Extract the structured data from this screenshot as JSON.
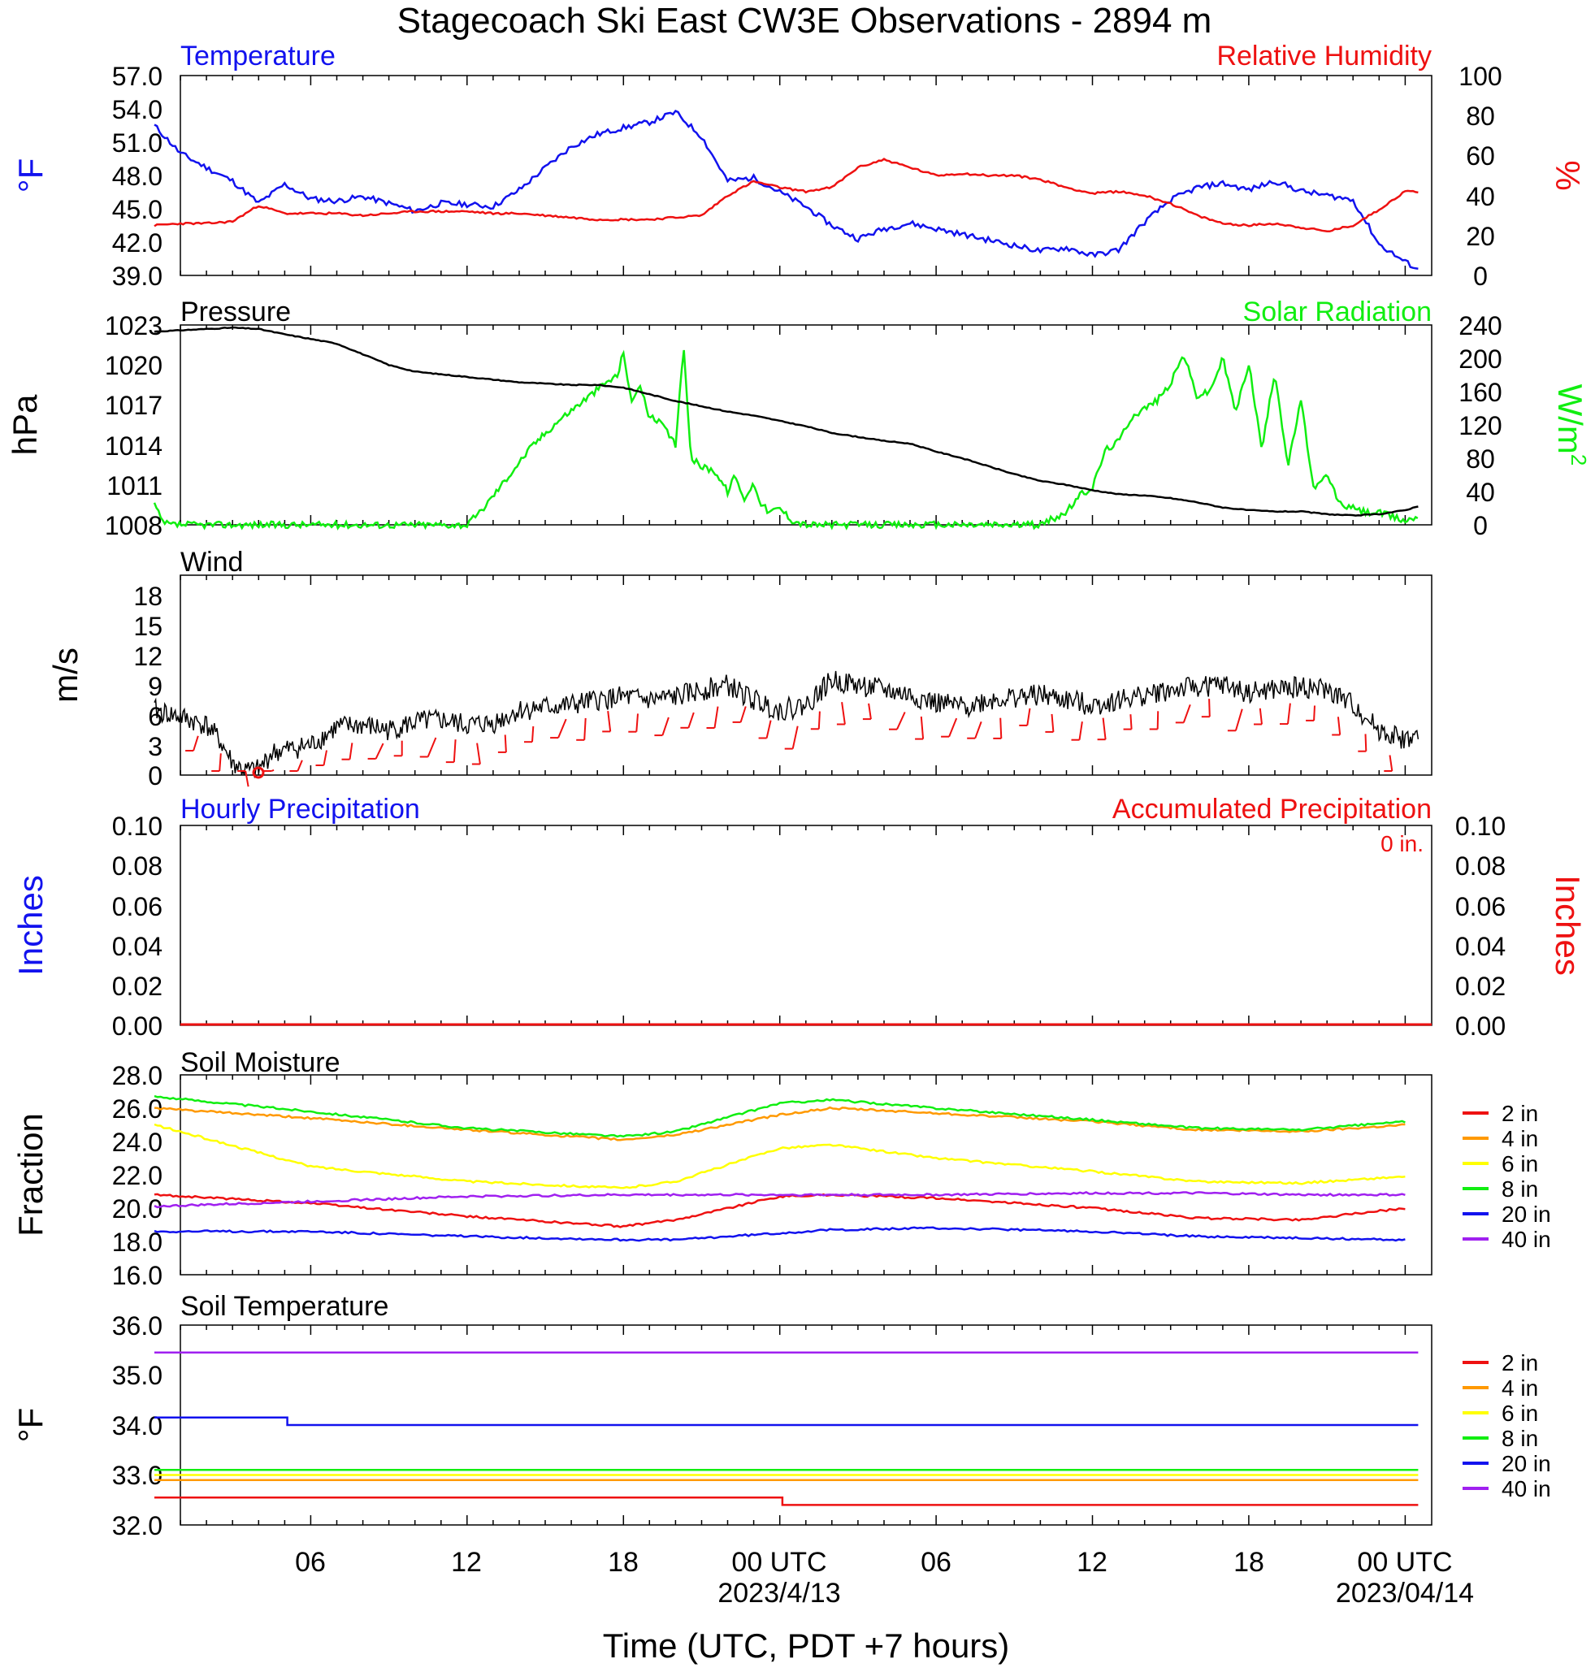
{
  "title": "Stagecoach Ski East CW3E Observations - 2894 m",
  "xaxis": {
    "ticks": [
      "06",
      "12",
      "18",
      "00 UTC",
      "06",
      "12",
      "18",
      "00 UTC"
    ],
    "dates": [
      "2023/4/13",
      "2023/04/14"
    ],
    "title": "Time (UTC, PDT +7 hours)"
  },
  "colors": {
    "blue": "#1212ee",
    "red": "#ee1111",
    "green": "#11ee11",
    "black": "#000000",
    "orange": "#ff9900",
    "yellow": "#ffff00",
    "purple": "#a020f0"
  },
  "panels": {
    "temp_rh": {
      "left_title": "Temperature",
      "right_title": "Relative Humidity",
      "left_unit": "°F",
      "right_unit": "%",
      "left_ticks": [
        "57.0",
        "54.0",
        "51.0",
        "48.0",
        "45.0",
        "42.0",
        "39.0"
      ],
      "right_ticks": [
        "100",
        "80",
        "60",
        "40",
        "20",
        "0"
      ]
    },
    "pressure_solar": {
      "left_title": "Pressure",
      "right_title": "Solar Radiation",
      "left_unit": "hPa",
      "right_unit": "W/m",
      "right_unit_sup": "2",
      "left_ticks": [
        "1023",
        "1020",
        "1017",
        "1014",
        "1011",
        "1008"
      ],
      "right_ticks": [
        "240",
        "200",
        "160",
        "120",
        "80",
        "40",
        "0"
      ]
    },
    "wind": {
      "left_title": "Wind",
      "left_unit": "m/s",
      "left_ticks": [
        "18",
        "15",
        "12",
        "9",
        "6",
        "3",
        "0"
      ]
    },
    "precip": {
      "left_title": "Hourly Precipitation",
      "right_title": "Accumulated Precipitation",
      "accum_label": "0 in.",
      "left_unit": "Inches",
      "right_unit": "Inches",
      "left_ticks": [
        "0.10",
        "0.08",
        "0.06",
        "0.04",
        "0.02",
        "0.00"
      ],
      "right_ticks": [
        "0.10",
        "0.08",
        "0.06",
        "0.04",
        "0.02",
        "0.00"
      ]
    },
    "soil_moisture": {
      "left_title": "Soil Moisture",
      "left_unit": "Fraction",
      "left_ticks": [
        "28.0",
        "26.0",
        "24.0",
        "22.0",
        "20.0",
        "18.0",
        "16.0"
      ],
      "legend": [
        "2 in",
        "4 in",
        "6 in",
        "8 in",
        "20 in",
        "40 in"
      ]
    },
    "soil_temp": {
      "left_title": "Soil Temperature",
      "left_unit": "°F",
      "left_ticks": [
        "36.0",
        "35.0",
        "34.0",
        "33.0",
        "32.0"
      ],
      "legend": [
        "2 in",
        "4 in",
        "6 in",
        "8 in",
        "20 in",
        "40 in"
      ]
    }
  },
  "chart_data": [
    {
      "type": "line",
      "title": "Temperature / Relative Humidity",
      "x_unit": "hours since 2023-04-12 00 UTC",
      "ylim_left": [
        39,
        57
      ],
      "ylim_right": [
        0,
        100
      ],
      "series": [
        {
          "name": "Temperature",
          "axis": "left",
          "x": [
            0,
            1,
            2,
            3,
            4,
            5,
            6,
            7,
            8,
            9,
            10,
            11,
            12,
            13,
            14,
            15,
            16,
            17,
            18,
            19,
            20,
            21,
            22,
            23,
            24,
            25,
            26,
            27,
            28,
            29,
            30,
            31,
            32,
            33,
            34,
            35,
            36,
            37,
            38,
            39,
            40,
            41,
            42,
            43,
            44,
            45,
            46,
            47,
            48,
            48.5
          ],
          "values": [
            52.5,
            50,
            48.7,
            47.5,
            45.5,
            47.2,
            45.9,
            45.7,
            46.1,
            45.5,
            44.8,
            45.5,
            45.4,
            45.2,
            46.7,
            48.7,
            50.6,
            51.7,
            52.3,
            52.8,
            53.7,
            51.5,
            47.5,
            47.8,
            46.5,
            45.2,
            43.5,
            42.3,
            43.2,
            43.7,
            43.2,
            42.7,
            42.2,
            41.7,
            41.2,
            41.5,
            40.8,
            41.3,
            43.8,
            45.8,
            46.9,
            47.3,
            46.7,
            47.5,
            46.6,
            46.2,
            45.8,
            41.8,
            40.2,
            39.6
          ]
        },
        {
          "name": "Relative Humidity",
          "axis": "right",
          "x": [
            0,
            1,
            2,
            3,
            4,
            5,
            6,
            7,
            8,
            9,
            10,
            11,
            12,
            13,
            14,
            15,
            16,
            17,
            18,
            19,
            20,
            21,
            22,
            23,
            24,
            25,
            26,
            27,
            28,
            29,
            30,
            31,
            32,
            33,
            34,
            35,
            36,
            37,
            38,
            39,
            40,
            41,
            42,
            43,
            44,
            45,
            46,
            47,
            48,
            48.5
          ],
          "values": [
            25,
            26,
            26,
            27,
            35,
            31,
            31,
            31,
            30,
            31,
            32,
            32,
            32,
            31,
            31,
            30,
            29,
            28,
            28,
            28,
            29,
            30,
            40,
            47,
            44,
            42,
            44,
            54,
            58,
            54,
            50,
            51,
            50,
            50,
            48,
            44,
            41,
            42,
            40,
            36,
            30,
            26,
            25,
            26,
            24,
            22,
            25,
            33,
            42,
            42
          ]
        }
      ]
    },
    {
      "type": "line",
      "title": "Pressure / Solar Radiation",
      "x_unit": "hours since 2023-04-12 00 UTC",
      "ylim_left": [
        1008,
        1023
      ],
      "ylim_right": [
        0,
        240
      ],
      "series": [
        {
          "name": "Pressure",
          "axis": "left",
          "x": [
            0,
            2,
            3,
            4,
            5,
            7,
            8,
            9,
            10,
            11,
            12,
            13,
            14,
            15,
            16,
            17,
            18,
            19,
            20,
            21,
            22,
            23,
            24,
            25,
            26,
            27,
            28,
            29,
            30,
            31,
            32,
            33,
            34,
            35,
            36,
            37,
            38,
            39,
            40,
            41,
            42,
            43,
            44,
            45,
            46,
            47,
            48,
            48.5
          ],
          "values": [
            1022.5,
            1022.7,
            1022.8,
            1022.7,
            1022.3,
            1021.6,
            1020.8,
            1020.0,
            1019.5,
            1019.3,
            1019.1,
            1018.9,
            1018.7,
            1018.6,
            1018.5,
            1018.5,
            1018.3,
            1017.8,
            1017.3,
            1016.9,
            1016.5,
            1016.2,
            1015.8,
            1015.4,
            1014.9,
            1014.6,
            1014.3,
            1014.1,
            1013.5,
            1013.0,
            1012.4,
            1011.8,
            1011.3,
            1011.0,
            1010.6,
            1010.3,
            1010.2,
            1010.0,
            1009.7,
            1009.3,
            1009.1,
            1009.0,
            1009.0,
            1008.8,
            1008.7,
            1008.8,
            1009.1,
            1009.4
          ]
        },
        {
          "name": "Solar Radiation",
          "axis": "right",
          "x": [
            0,
            0.3,
            0.6,
            12,
            12.5,
            13.5,
            14.5,
            15.5,
            16.5,
            17.3,
            17.8,
            18,
            18.3,
            18.6,
            19,
            19.5,
            20,
            20.3,
            20.6,
            21,
            21.5,
            22,
            22.3,
            22.6,
            23,
            23.3,
            23.6,
            24,
            24.5,
            25,
            30,
            34,
            35,
            35.5,
            36,
            36.5,
            37,
            37.5,
            38,
            38.5,
            39,
            39.5,
            40,
            40.5,
            41,
            41.5,
            42,
            42.5,
            43,
            43.5,
            44,
            44.5,
            45,
            45.5,
            46,
            46.5,
            47,
            48,
            48.5
          ],
          "values": [
            25,
            3,
            0,
            0,
            15,
            55,
            95,
            125,
            150,
            170,
            180,
            210,
            145,
            170,
            130,
            120,
            95,
            215,
            80,
            70,
            65,
            40,
            60,
            30,
            50,
            25,
            15,
            20,
            5,
            0,
            0,
            0,
            15,
            35,
            45,
            90,
            100,
            130,
            140,
            150,
            170,
            205,
            155,
            160,
            200,
            135,
            195,
            90,
            185,
            70,
            150,
            40,
            60,
            25,
            20,
            15,
            15,
            5,
            10
          ]
        }
      ]
    },
    {
      "type": "line",
      "title": "Wind",
      "x_unit": "hours since 2023-04-12 00 UTC",
      "ylim": [
        0,
        20
      ],
      "series": [
        {
          "name": "Wind speed",
          "x": [
            0,
            1,
            2,
            2.5,
            3,
            3.5,
            4,
            4.5,
            5,
            6,
            7,
            8,
            9,
            10,
            11,
            12,
            13,
            14,
            15,
            16,
            17,
            18,
            19,
            20,
            21,
            22,
            23,
            24,
            25,
            26,
            27,
            28,
            29,
            30,
            31,
            32,
            33,
            34,
            35,
            36,
            37,
            38,
            39,
            40,
            41,
            42,
            43,
            44,
            45,
            46,
            47,
            48,
            48.5
          ],
          "values": [
            6.5,
            5.8,
            5.0,
            3.5,
            1.2,
            0.4,
            0.5,
            2.2,
            2.5,
            3.0,
            4.8,
            5.0,
            4.5,
            5.3,
            5.5,
            5.0,
            5.2,
            6.5,
            6.8,
            7.0,
            7.5,
            7.8,
            7.5,
            7.8,
            8.5,
            9.0,
            7.5,
            6.5,
            7.0,
            9.5,
            9.0,
            8.5,
            8.0,
            7.2,
            6.8,
            7.5,
            7.8,
            8.0,
            7.5,
            7.0,
            7.5,
            8.0,
            8.5,
            8.8,
            9.0,
            8.2,
            8.5,
            8.8,
            8.5,
            7.0,
            4.5,
            3.5,
            3.8
          ]
        }
      ]
    },
    {
      "type": "line",
      "title": "Precipitation",
      "x_unit": "hours since 2023-04-12 00 UTC",
      "ylim": [
        0,
        0.1
      ],
      "series": [
        {
          "name": "Hourly Precipitation",
          "x": [
            0,
            48.5
          ],
          "values": [
            0,
            0
          ]
        },
        {
          "name": "Accumulated Precipitation",
          "x": [
            0,
            48.5
          ],
          "values": [
            0,
            0
          ]
        }
      ]
    },
    {
      "type": "line",
      "title": "Soil Moisture",
      "x_unit": "hours since 2023-04-12 00 UTC",
      "ylim": [
        16,
        28
      ],
      "series": [
        {
          "name": "2 in",
          "x": [
            0,
            6,
            12,
            18,
            20,
            24,
            26,
            30,
            36,
            40,
            44,
            48
          ],
          "values": [
            20.8,
            20.3,
            19.5,
            18.9,
            19.3,
            20.7,
            20.8,
            20.6,
            20.0,
            19.4,
            19.3,
            20.0
          ]
        },
        {
          "name": "4 in",
          "x": [
            0,
            6,
            12,
            18,
            20,
            24,
            26,
            30,
            36,
            40,
            44,
            48
          ],
          "values": [
            26.0,
            25.4,
            24.7,
            24.1,
            24.4,
            25.6,
            26.0,
            25.7,
            25.2,
            24.7,
            24.6,
            25.0
          ]
        },
        {
          "name": "6 in",
          "x": [
            0,
            6,
            12,
            18,
            20,
            24,
            26,
            30,
            36,
            40,
            44,
            48
          ],
          "values": [
            25.0,
            22.5,
            21.6,
            21.2,
            21.6,
            23.6,
            23.8,
            23.0,
            22.2,
            21.6,
            21.5,
            21.9
          ]
        },
        {
          "name": "8 in",
          "x": [
            0,
            6,
            12,
            18,
            20,
            24,
            26,
            30,
            36,
            40,
            44,
            48
          ],
          "values": [
            26.7,
            25.8,
            24.8,
            24.3,
            24.6,
            26.3,
            26.5,
            26.0,
            25.3,
            24.8,
            24.7,
            25.2
          ]
        },
        {
          "name": "20 in",
          "x": [
            0,
            6,
            12,
            18,
            20,
            24,
            26,
            30,
            36,
            40,
            44,
            48
          ],
          "values": [
            18.6,
            18.6,
            18.3,
            18.1,
            18.1,
            18.5,
            18.7,
            18.8,
            18.6,
            18.3,
            18.2,
            18.1
          ]
        },
        {
          "name": "40 in",
          "x": [
            0,
            6,
            12,
            18,
            20,
            24,
            26,
            30,
            36,
            40,
            44,
            48
          ],
          "values": [
            20.1,
            20.4,
            20.7,
            20.8,
            20.8,
            20.8,
            20.8,
            20.8,
            20.9,
            20.9,
            20.8,
            20.8
          ]
        }
      ]
    },
    {
      "type": "line",
      "title": "Soil Temperature",
      "x_unit": "hours since 2023-04-12 00 UTC",
      "ylim": [
        32,
        36
      ],
      "series": [
        {
          "name": "2 in",
          "x": [
            0,
            24,
            24.1,
            48.5
          ],
          "values": [
            32.55,
            32.55,
            32.4,
            32.4
          ]
        },
        {
          "name": "4 in",
          "x": [
            0,
            48.5
          ],
          "values": [
            32.9,
            32.9
          ]
        },
        {
          "name": "6 in",
          "x": [
            0,
            48.5
          ],
          "values": [
            33.0,
            33.0
          ]
        },
        {
          "name": "8 in",
          "x": [
            0,
            48.5
          ],
          "values": [
            33.1,
            33.1
          ]
        },
        {
          "name": "20 in",
          "x": [
            0,
            5,
            5.1,
            48.5
          ],
          "values": [
            34.15,
            34.15,
            34.0,
            34.0
          ]
        },
        {
          "name": "40 in",
          "x": [
            0,
            48.5
          ],
          "values": [
            35.45,
            35.45
          ]
        }
      ]
    }
  ]
}
